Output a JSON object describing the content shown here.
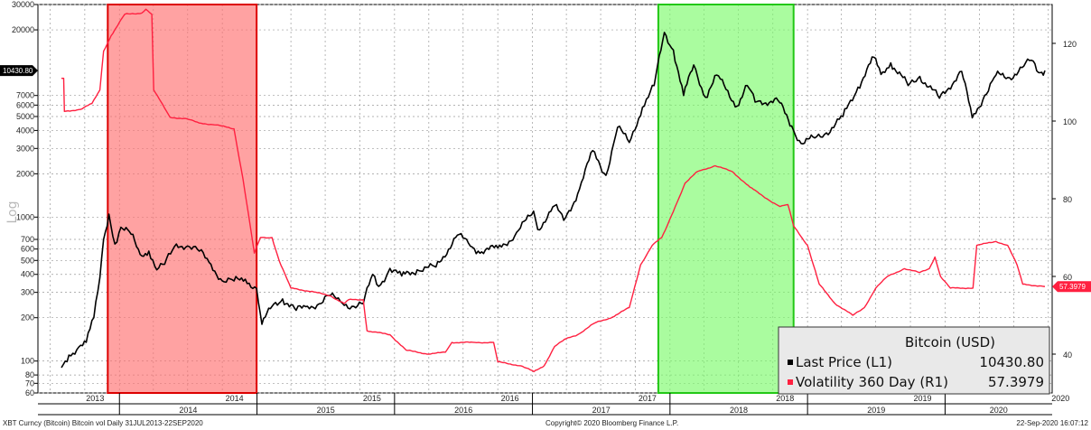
{
  "chart_data": {
    "type": "line",
    "ylabel": "Log",
    "x_axis": {
      "minor_labels": [
        "2013",
        "2014",
        "2015",
        "2016",
        "2017",
        "2018",
        "2019",
        "2020"
      ],
      "major_labels": [
        "2014",
        "2015",
        "2016",
        "2017",
        "2018",
        "2019",
        "2020"
      ]
    },
    "left_axis": {
      "scale": "log",
      "ylim": [
        60,
        30000
      ],
      "ticks": [
        60,
        70,
        80,
        100,
        200,
        300,
        400,
        500,
        600,
        700,
        1000,
        2000,
        3000,
        4000,
        5000,
        6000,
        7000,
        20000,
        30000
      ],
      "tick_labels": [
        "60",
        "70",
        "80",
        "100",
        "200",
        "300",
        "400",
        "500",
        "600",
        "700",
        "1000",
        "2000",
        "3000",
        "4000",
        "5000",
        "6000",
        "7000",
        "20000",
        "30000"
      ]
    },
    "right_axis": {
      "scale": "linear",
      "ylim": [
        30,
        130
      ],
      "ticks": [
        40,
        60,
        80,
        100,
        120
      ],
      "tick_labels": [
        "40",
        "60",
        "80",
        "100",
        "120"
      ]
    },
    "highlight_regions": [
      {
        "x": [
          "2013-12-01",
          "2014-12-31"
        ],
        "color": "#ff7070",
        "border": "#dd0000"
      },
      {
        "x": [
          "2017-12-01",
          "2018-11-25"
        ],
        "color": "#7dfa6c",
        "border": "#22c816"
      }
    ],
    "series": [
      {
        "name": "Last Price (L1)",
        "axis": "left",
        "color": "#000000",
        "last_value_label": "10430.80",
        "points": [
          [
            "2013-07-31",
            90
          ],
          [
            "2013-08-20",
            110
          ],
          [
            "2013-09-15",
            125
          ],
          [
            "2013-10-05",
            135
          ],
          [
            "2013-10-25",
            200
          ],
          [
            "2013-11-10",
            380
          ],
          [
            "2013-11-20",
            700
          ],
          [
            "2013-12-04",
            1050
          ],
          [
            "2013-12-20",
            650
          ],
          [
            "2014-01-05",
            850
          ],
          [
            "2014-02-01",
            760
          ],
          [
            "2014-02-25",
            550
          ],
          [
            "2014-03-20",
            580
          ],
          [
            "2014-04-10",
            430
          ],
          [
            "2014-05-01",
            470
          ],
          [
            "2014-06-01",
            650
          ],
          [
            "2014-07-01",
            630
          ],
          [
            "2014-08-01",
            580
          ],
          [
            "2014-09-01",
            470
          ],
          [
            "2014-10-01",
            360
          ],
          [
            "2014-11-01",
            360
          ],
          [
            "2014-12-01",
            370
          ],
          [
            "2014-12-31",
            320
          ],
          [
            "2015-01-14",
            180
          ],
          [
            "2015-02-10",
            240
          ],
          [
            "2015-03-10",
            270
          ],
          [
            "2015-04-15",
            225
          ],
          [
            "2015-05-15",
            240
          ],
          [
            "2015-06-15",
            250
          ],
          [
            "2015-07-10",
            285
          ],
          [
            "2015-08-10",
            260
          ],
          [
            "2015-09-10",
            240
          ],
          [
            "2015-10-10",
            250
          ],
          [
            "2015-11-04",
            400
          ],
          [
            "2015-11-20",
            330
          ],
          [
            "2015-12-20",
            440
          ],
          [
            "2016-01-20",
            390
          ],
          [
            "2016-03-01",
            430
          ],
          [
            "2016-04-20",
            450
          ],
          [
            "2016-06-16",
            750
          ],
          [
            "2016-07-15",
            660
          ],
          [
            "2016-08-10",
            580
          ],
          [
            "2016-10-01",
            610
          ],
          [
            "2016-11-15",
            740
          ],
          [
            "2017-01-04",
            1100
          ],
          [
            "2017-01-15",
            820
          ],
          [
            "2017-03-01",
            1200
          ],
          [
            "2017-03-25",
            950
          ],
          [
            "2017-05-01",
            1450
          ],
          [
            "2017-06-10",
            2900
          ],
          [
            "2017-07-15",
            1950
          ],
          [
            "2017-08-15",
            4200
          ],
          [
            "2017-09-15",
            3300
          ],
          [
            "2017-10-20",
            5800
          ],
          [
            "2017-11-20",
            8200
          ],
          [
            "2017-12-17",
            19200
          ],
          [
            "2018-01-10",
            14500
          ],
          [
            "2018-02-06",
            7000
          ],
          [
            "2018-03-05",
            11400
          ],
          [
            "2018-04-05",
            6800
          ],
          [
            "2018-05-05",
            9700
          ],
          [
            "2018-06-28",
            5900
          ],
          [
            "2018-07-25",
            8200
          ],
          [
            "2018-08-15",
            6300
          ],
          [
            "2018-10-15",
            6450
          ],
          [
            "2018-11-20",
            4300
          ],
          [
            "2018-12-15",
            3250
          ],
          [
            "2019-01-20",
            3550
          ],
          [
            "2019-02-20",
            3850
          ],
          [
            "2019-04-05",
            5000
          ],
          [
            "2019-05-15",
            8000
          ],
          [
            "2019-06-26",
            12900
          ],
          [
            "2019-07-15",
            9800
          ],
          [
            "2019-08-10",
            11800
          ],
          [
            "2019-09-25",
            8200
          ],
          [
            "2019-10-26",
            9500
          ],
          [
            "2019-12-17",
            6700
          ],
          [
            "2020-02-14",
            10300
          ],
          [
            "2020-03-13",
            4900
          ],
          [
            "2020-04-15",
            7000
          ],
          [
            "2020-05-15",
            9700
          ],
          [
            "2020-06-20",
            9300
          ],
          [
            "2020-07-28",
            11200
          ],
          [
            "2020-08-17",
            12300
          ],
          [
            "2020-09-05",
            10100
          ],
          [
            "2020-09-22",
            10430.8
          ]
        ]
      },
      {
        "name": "Volatility 360 Day (R1)",
        "axis": "right",
        "color": "#ff2040",
        "last_value_label": "57.3979",
        "points": [
          [
            "2013-07-31",
            111
          ],
          [
            "2013-08-06",
            111
          ],
          [
            "2013-08-08",
            102.5
          ],
          [
            "2013-09-20",
            103
          ],
          [
            "2013-10-20",
            104.5
          ],
          [
            "2013-11-10",
            108
          ],
          [
            "2013-11-20",
            118
          ],
          [
            "2013-12-10",
            122
          ],
          [
            "2014-01-15",
            127.5
          ],
          [
            "2014-03-01",
            127.8
          ],
          [
            "2014-03-12",
            128.8
          ],
          [
            "2014-03-28",
            127.5
          ],
          [
            "2014-04-02",
            108
          ],
          [
            "2014-05-15",
            101
          ],
          [
            "2014-07-01",
            100.5
          ],
          [
            "2014-08-01",
            99.5
          ],
          [
            "2014-09-15",
            99
          ],
          [
            "2014-11-01",
            98
          ],
          [
            "2014-11-25",
            85
          ],
          [
            "2014-12-25",
            66
          ],
          [
            "2015-01-10",
            70
          ],
          [
            "2015-02-10",
            70
          ],
          [
            "2015-03-01",
            64
          ],
          [
            "2015-04-01",
            57
          ],
          [
            "2015-06-01",
            56
          ],
          [
            "2015-07-15",
            55
          ],
          [
            "2015-08-20",
            53
          ],
          [
            "2015-09-01",
            54
          ],
          [
            "2015-10-10",
            54
          ],
          [
            "2015-10-20",
            46
          ],
          [
            "2015-12-20",
            45
          ],
          [
            "2016-02-01",
            41
          ],
          [
            "2016-04-01",
            40
          ],
          [
            "2016-05-15",
            40.5
          ],
          [
            "2016-06-01",
            43
          ],
          [
            "2016-08-01",
            43
          ],
          [
            "2016-09-20",
            43
          ],
          [
            "2016-10-01",
            38
          ],
          [
            "2016-12-01",
            37
          ],
          [
            "2017-01-05",
            35.5
          ],
          [
            "2017-02-01",
            37
          ],
          [
            "2017-03-01",
            42
          ],
          [
            "2017-04-01",
            44
          ],
          [
            "2017-05-01",
            45
          ],
          [
            "2017-06-15",
            48
          ],
          [
            "2017-08-01",
            49.5
          ],
          [
            "2017-09-15",
            52
          ],
          [
            "2017-10-15",
            63
          ],
          [
            "2017-11-15",
            68
          ],
          [
            "2017-12-10",
            70
          ],
          [
            "2017-12-20",
            72
          ],
          [
            "2018-01-15",
            78
          ],
          [
            "2018-02-10",
            84
          ],
          [
            "2018-03-15",
            87
          ],
          [
            "2018-05-01",
            88.5
          ],
          [
            "2018-06-15",
            87
          ],
          [
            "2018-08-01",
            83
          ],
          [
            "2018-09-15",
            80
          ],
          [
            "2018-10-20",
            78
          ],
          [
            "2018-11-10",
            78.5
          ],
          [
            "2018-11-25",
            73
          ],
          [
            "2019-01-01",
            68
          ],
          [
            "2019-02-01",
            58
          ],
          [
            "2019-03-15",
            53
          ],
          [
            "2019-05-01",
            50
          ],
          [
            "2019-06-01",
            52
          ],
          [
            "2019-07-01",
            57
          ],
          [
            "2019-08-01",
            60
          ],
          [
            "2019-09-15",
            62
          ],
          [
            "2019-10-25",
            61
          ],
          [
            "2019-11-20",
            62
          ],
          [
            "2019-12-05",
            65
          ],
          [
            "2019-12-20",
            60
          ],
          [
            "2020-01-15",
            57
          ],
          [
            "2020-03-01",
            57
          ],
          [
            "2020-03-15",
            57
          ],
          [
            "2020-03-25",
            68
          ],
          [
            "2020-05-15",
            69
          ],
          [
            "2020-06-15",
            68
          ],
          [
            "2020-07-10",
            63
          ],
          [
            "2020-07-25",
            58
          ],
          [
            "2020-09-22",
            57.3979
          ]
        ]
      }
    ],
    "legend": {
      "title": "Bitcoin (USD)",
      "position": "bottom-right",
      "entries": [
        {
          "label": "Last Price  (L1)",
          "value": "10430.80",
          "color": "#000000"
        },
        {
          "label": "Volatility 360 Day  (R1)",
          "value": "57.3979",
          "color": "#ff2040"
        }
      ]
    },
    "footer": {
      "left": "XBT Curncy (Bitcoin) Bitcoin vol  Daily 31JUL2013-22SEP2020",
      "center": "Copyright© 2020 Bloomberg Finance L.P.",
      "right": "22-Sep-2020 16:07:12"
    }
  }
}
